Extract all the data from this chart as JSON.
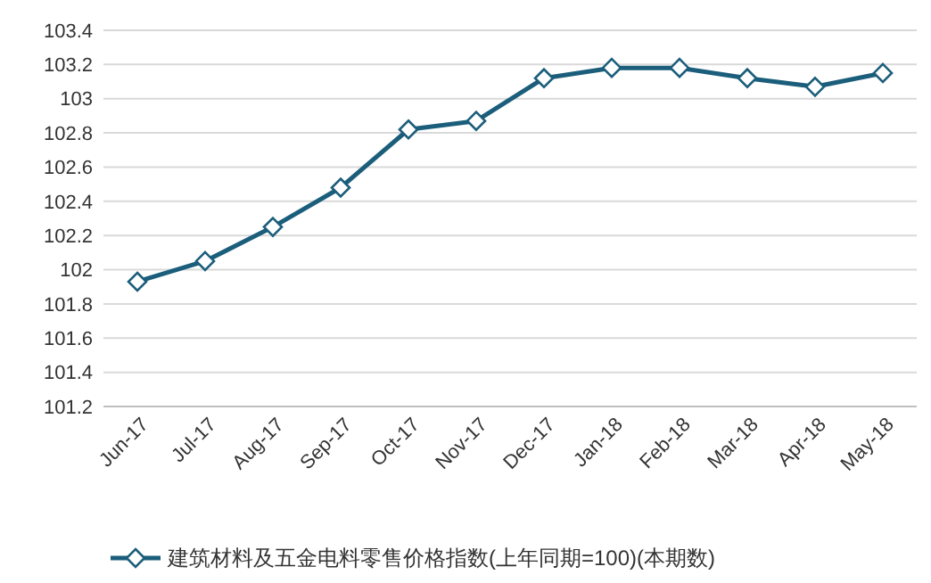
{
  "chart_data": {
    "type": "line",
    "categories": [
      "Jun-17",
      "Jul-17",
      "Aug-17",
      "Sep-17",
      "Oct-17",
      "Nov-17",
      "Dec-17",
      "Jan-18",
      "Feb-18",
      "Mar-18",
      "Apr-18",
      "May-18"
    ],
    "series": [
      {
        "name": "建筑材料及五金电料零售价格指数(上年同期=100)(本期数)",
        "color": "#1b5e7b",
        "values": [
          101.93,
          102.05,
          102.25,
          102.48,
          102.82,
          102.87,
          103.12,
          103.18,
          103.18,
          103.12,
          103.07,
          103.15
        ]
      }
    ],
    "ylim": [
      101.2,
      103.4
    ],
    "yticks": [
      101.2,
      101.4,
      101.6,
      101.8,
      102,
      102.2,
      102.4,
      102.6,
      102.8,
      103,
      103.2,
      103.4
    ],
    "grid": "y",
    "legend": "bottom",
    "marker": "diamond",
    "line_style": "solid"
  }
}
